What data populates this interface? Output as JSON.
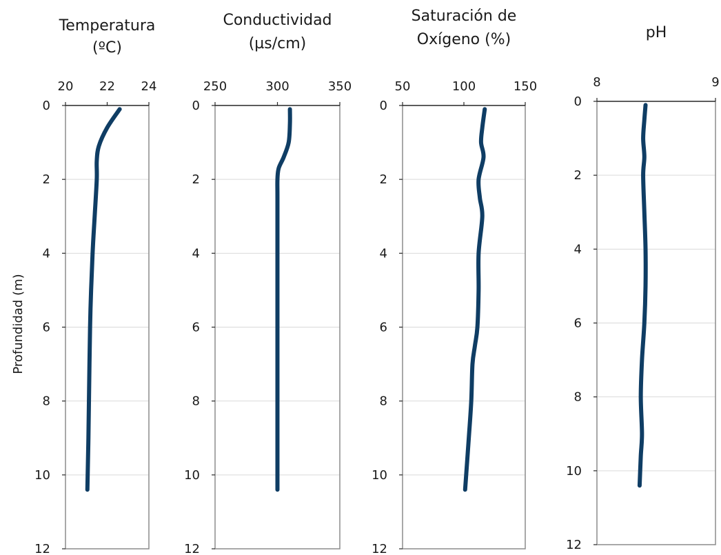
{
  "ylabel": "Profundidad (m)",
  "colors": {
    "series": "#0f3d64",
    "grid": "#d9d9d9",
    "frame": "#8c8c8c"
  },
  "chart_data": [
    {
      "type": "line",
      "title": [
        "Temperatura",
        "(ºC)"
      ],
      "xlim": [
        20,
        24
      ],
      "xticks": [
        20,
        22,
        24
      ],
      "ylim": [
        0,
        12
      ],
      "yticks": [
        0,
        2,
        4,
        6,
        8,
        10,
        12
      ],
      "y_inverted": true,
      "x_axis_position": "top",
      "grid": true,
      "series": [
        {
          "x": [
            22.6,
            22.0,
            21.6,
            21.5,
            21.5,
            21.4,
            21.3,
            21.2,
            21.15,
            21.1,
            21.05
          ],
          "y": [
            0.1,
            0.6,
            1.1,
            1.5,
            2.0,
            3.0,
            4.0,
            5.5,
            7.0,
            9.0,
            10.4
          ]
        }
      ]
    },
    {
      "type": "line",
      "title": [
        "Conductividad",
        "(µs/cm)"
      ],
      "xlim": [
        250,
        350
      ],
      "xticks": [
        250,
        300,
        350
      ],
      "ylim": [
        0,
        12
      ],
      "yticks": [
        0,
        2,
        4,
        6,
        8,
        10,
        12
      ],
      "y_inverted": true,
      "x_axis_position": "top",
      "grid": true,
      "series": [
        {
          "x": [
            310,
            310,
            309,
            305,
            301,
            300,
            300,
            300,
            300,
            300
          ],
          "y": [
            0.1,
            0.5,
            1.0,
            1.4,
            1.7,
            2.0,
            2.5,
            4.0,
            7.0,
            10.4
          ]
        }
      ]
    },
    {
      "type": "line",
      "title": [
        "Saturación de",
        "Oxígeno (%)"
      ],
      "xlim": [
        50,
        150
      ],
      "xticks": [
        50,
        100,
        150
      ],
      "ylim": [
        0,
        12
      ],
      "yticks": [
        0,
        2,
        4,
        6,
        8,
        10,
        12
      ],
      "y_inverted": true,
      "x_axis_position": "top",
      "grid": true,
      "series": [
        {
          "x": [
            117,
            115,
            114,
            116,
            112,
            113,
            115,
            112,
            112,
            111,
            109,
            107,
            106,
            104,
            101
          ],
          "y": [
            0.1,
            0.6,
            1.0,
            1.4,
            2.0,
            2.5,
            3.0,
            4.0,
            5.0,
            6.0,
            6.5,
            7.0,
            8.0,
            9.0,
            10.4
          ]
        }
      ]
    },
    {
      "type": "line",
      "title": [
        "pH"
      ],
      "xlim": [
        8,
        9
      ],
      "xticks": [
        8,
        9
      ],
      "ylim": [
        0,
        12
      ],
      "yticks": [
        0,
        2,
        4,
        6,
        8,
        10,
        12
      ],
      "y_inverted": true,
      "x_axis_position": "top",
      "grid": true,
      "series": [
        {
          "x": [
            8.41,
            8.4,
            8.39,
            8.4,
            8.39,
            8.4,
            8.41,
            8.41,
            8.4,
            8.38,
            8.37,
            8.38,
            8.37,
            8.36
          ],
          "y": [
            0.1,
            0.5,
            1.0,
            1.5,
            2.0,
            3.0,
            4.0,
            5.0,
            6.0,
            7.0,
            8.0,
            9.0,
            9.6,
            10.4
          ]
        }
      ]
    }
  ]
}
